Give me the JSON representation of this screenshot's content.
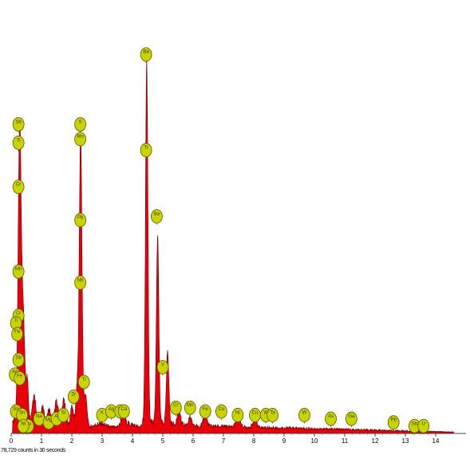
{
  "chart_data": {
    "type": "area",
    "title": "",
    "xlabel": "",
    "ylabel": "",
    "xlim": [
      0,
      14.6
    ],
    "ylim": [
      0,
      100
    ],
    "x_ticks": [
      "0",
      "1",
      "2",
      "3",
      "4",
      "5",
      "6",
      "7",
      "8",
      "9",
      "10",
      "11",
      "12",
      "13",
      "14"
    ],
    "fill_color": "#e8000a",
    "peaks": [
      {
        "x": 0.28,
        "height": 81,
        "width": 0.05
      },
      {
        "x": 0.4,
        "height": 28,
        "width": 0.05
      },
      {
        "x": 0.53,
        "height": 12,
        "width": 0.04
      },
      {
        "x": 0.75,
        "height": 7,
        "width": 0.06
      },
      {
        "x": 1.04,
        "height": 4,
        "width": 0.05
      },
      {
        "x": 1.25,
        "height": 4,
        "width": 0.05
      },
      {
        "x": 1.49,
        "height": 5,
        "width": 0.05
      },
      {
        "x": 1.74,
        "height": 6,
        "width": 0.05
      },
      {
        "x": 2.0,
        "height": 5,
        "width": 0.04
      },
      {
        "x": 2.17,
        "height": 8,
        "width": 0.04
      },
      {
        "x": 2.29,
        "height": 80,
        "width": 0.045
      },
      {
        "x": 2.45,
        "height": 9,
        "width": 0.05
      },
      {
        "x": 3.69,
        "height": 4,
        "width": 0.05
      },
      {
        "x": 4.47,
        "height": 98,
        "width": 0.04
      },
      {
        "x": 4.83,
        "height": 51,
        "width": 0.04
      },
      {
        "x": 5.16,
        "height": 20,
        "width": 0.04
      },
      {
        "x": 5.53,
        "height": 4,
        "width": 0.05
      },
      {
        "x": 5.9,
        "height": 2,
        "width": 0.05
      },
      {
        "x": 6.4,
        "height": 3,
        "width": 0.06
      },
      {
        "x": 7.48,
        "height": 4,
        "width": 0.06
      },
      {
        "x": 8.04,
        "height": 2,
        "width": 0.06
      }
    ],
    "element_markers": [
      {
        "symbol": "Sb",
        "x": 0.24,
        "y": 84
      },
      {
        "symbol": "Ti",
        "x": 0.24,
        "y": 79
      },
      {
        "symbol": "Cr",
        "x": 0.24,
        "y": 67
      },
      {
        "symbol": "Mn",
        "x": 0.24,
        "y": 44
      },
      {
        "symbol": "Cr",
        "x": 0.24,
        "y": 32
      },
      {
        "symbol": "Ti",
        "x": 0.16,
        "y": 30
      },
      {
        "symbol": "Fe",
        "x": 0.2,
        "y": 27
      },
      {
        "symbol": "Sb",
        "x": 0.24,
        "y": 20
      },
      {
        "symbol": "Ag",
        "x": 0.12,
        "y": 16
      },
      {
        "symbol": "Fe",
        "x": 0.28,
        "y": 15
      },
      {
        "symbol": "Sn",
        "x": 0.16,
        "y": 6
      },
      {
        "symbol": "Sn",
        "x": 0.36,
        "y": 5
      },
      {
        "symbol": "Cu",
        "x": 0.56,
        "y": 2
      },
      {
        "symbol": "Ni",
        "x": 0.4,
        "y": 2
      },
      {
        "symbol": "Na",
        "x": 0.92,
        "y": 4
      },
      {
        "symbol": "Mg",
        "x": 1.24,
        "y": 3
      },
      {
        "symbol": "Al",
        "x": 1.5,
        "y": 4
      },
      {
        "symbol": "Si",
        "x": 1.72,
        "y": 5
      },
      {
        "symbol": "S",
        "x": 2.28,
        "y": 84
      },
      {
        "symbol": "Mo",
        "x": 2.28,
        "y": 80
      },
      {
        "symbol": "Pb",
        "x": 2.28,
        "y": 58
      },
      {
        "symbol": "Nb",
        "x": 2.28,
        "y": 41
      },
      {
        "symbol": "Zr",
        "x": 2.06,
        "y": 10
      },
      {
        "symbol": "Ti",
        "x": 2.4,
        "y": 14
      },
      {
        "symbol": "K",
        "x": 3.0,
        "y": 5
      },
      {
        "symbol": "Ag",
        "x": 3.3,
        "y": 6
      },
      {
        "symbol": "Sn",
        "x": 3.6,
        "y": 6
      },
      {
        "symbol": "Ca",
        "x": 3.72,
        "y": 6
      },
      {
        "symbol": "Ba",
        "x": 4.45,
        "y": 103
      },
      {
        "symbol": "Ti",
        "x": 4.45,
        "y": 77
      },
      {
        "symbol": "Ba",
        "x": 4.8,
        "y": 59
      },
      {
        "symbol": "V",
        "x": 5.0,
        "y": 18
      },
      {
        "symbol": "Cr",
        "x": 5.43,
        "y": 7
      },
      {
        "symbol": "Mn",
        "x": 5.9,
        "y": 7
      },
      {
        "symbol": "Fe",
        "x": 6.4,
        "y": 6
      },
      {
        "symbol": "Co",
        "x": 6.93,
        "y": 6
      },
      {
        "symbol": "Ni",
        "x": 7.47,
        "y": 5
      },
      {
        "symbol": "Cu",
        "x": 8.04,
        "y": 5
      },
      {
        "symbol": "W",
        "x": 8.4,
        "y": 5
      },
      {
        "symbol": "Ta",
        "x": 8.62,
        "y": 5
      },
      {
        "symbol": "W",
        "x": 9.67,
        "y": 5
      },
      {
        "symbol": "As",
        "x": 10.54,
        "y": 4
      },
      {
        "symbol": "Ga",
        "x": 11.22,
        "y": 4
      },
      {
        "symbol": "Pb",
        "x": 12.61,
        "y": 3
      },
      {
        "symbol": "Sb",
        "x": 13.3,
        "y": 2
      },
      {
        "symbol": "U",
        "x": 13.6,
        "y": 2
      }
    ],
    "marker_color": "#c8d400"
  },
  "footer": {
    "counts_text": "78,729 counts in 30 seconds"
  }
}
